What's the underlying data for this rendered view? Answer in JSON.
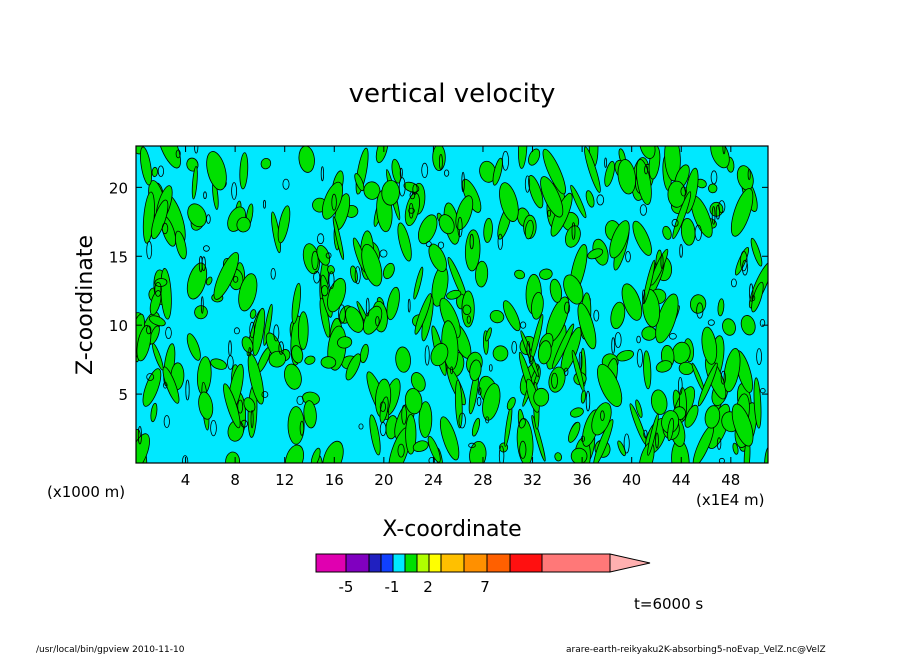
{
  "chart_data": {
    "type": "heatmap",
    "title": "vertical velocity",
    "xlabel": "X-coordinate",
    "ylabel": "Z-coordinate",
    "x_unit_left": "(x1000 m)",
    "x_unit_right": "(x1E4 m)",
    "xlim": [
      0,
      51
    ],
    "ylim": [
      0,
      23
    ],
    "x_ticks": [
      "4",
      "8",
      "12",
      "16",
      "20",
      "24",
      "28",
      "32",
      "36",
      "40",
      "44",
      "48"
    ],
    "y_ticks": [
      "5",
      "10",
      "15",
      "20"
    ],
    "x_tick_values": [
      4,
      8,
      12,
      16,
      20,
      24,
      28,
      32,
      36,
      40,
      44,
      48
    ],
    "y_tick_values": [
      5,
      10,
      15,
      20
    ],
    "colorbar": {
      "labels": [
        "-5",
        "-1",
        "2",
        "7"
      ],
      "colors": [
        "#e000b0",
        "#8000c0",
        "#2020c0",
        "#1040ff",
        "#00e8ff",
        "#00e000",
        "#b0ff00",
        "#ffff00",
        "#ffc000",
        "#ff9000",
        "#ff6000",
        "#ff1010",
        "#ff7878",
        "#ffb0b0"
      ]
    },
    "field_colors": {
      "cyan": "#00e8ff",
      "green": "#00e000"
    },
    "time_label": "t=6000 s"
  },
  "footer": {
    "left": "/usr/local/bin/gpview  2010-11-10",
    "right": "arare-earth-reikyaku2K-absorbing5-noEvap_VelZ.nc@VelZ"
  }
}
